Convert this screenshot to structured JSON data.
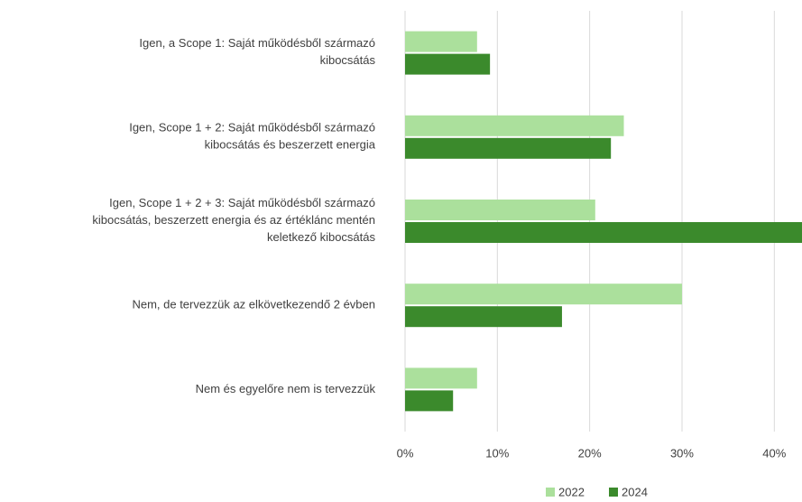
{
  "chart_data": {
    "type": "hbar",
    "categories": [
      "Igen, a Scope 1: Saját működésből származó\nkibocsátás",
      "Igen, Scope 1 + 2: Saját működésből származó\nkibocsátás és beszerzett energia",
      "Igen, Scope 1 + 2 + 3: Saját működésből származó\nkibocsátás, beszerzett energia és az értéklánc mentén\nkeletkező kibocsátás",
      "Nem, de tervezzük az elkövetkezendő 2 évben",
      "Nem és egyelőre nem is tervezzük"
    ],
    "series": [
      {
        "name": "2022",
        "color": "#abe09c",
        "values": [
          7.8,
          23.7,
          20.6,
          30,
          7.8
        ]
      },
      {
        "name": "2024",
        "color": "#3b8a2c",
        "values": [
          9.2,
          22.3,
          43,
          17,
          5.2
        ]
      }
    ],
    "xlim": [
      0,
      43
    ],
    "xticks": [
      {
        "value": 0,
        "label": "0%"
      },
      {
        "value": 10,
        "label": "10%"
      },
      {
        "value": 20,
        "label": "20%"
      },
      {
        "value": 30,
        "label": "30%"
      },
      {
        "value": 40,
        "label": "40%"
      }
    ],
    "grid": true,
    "legend": "bottom"
  }
}
